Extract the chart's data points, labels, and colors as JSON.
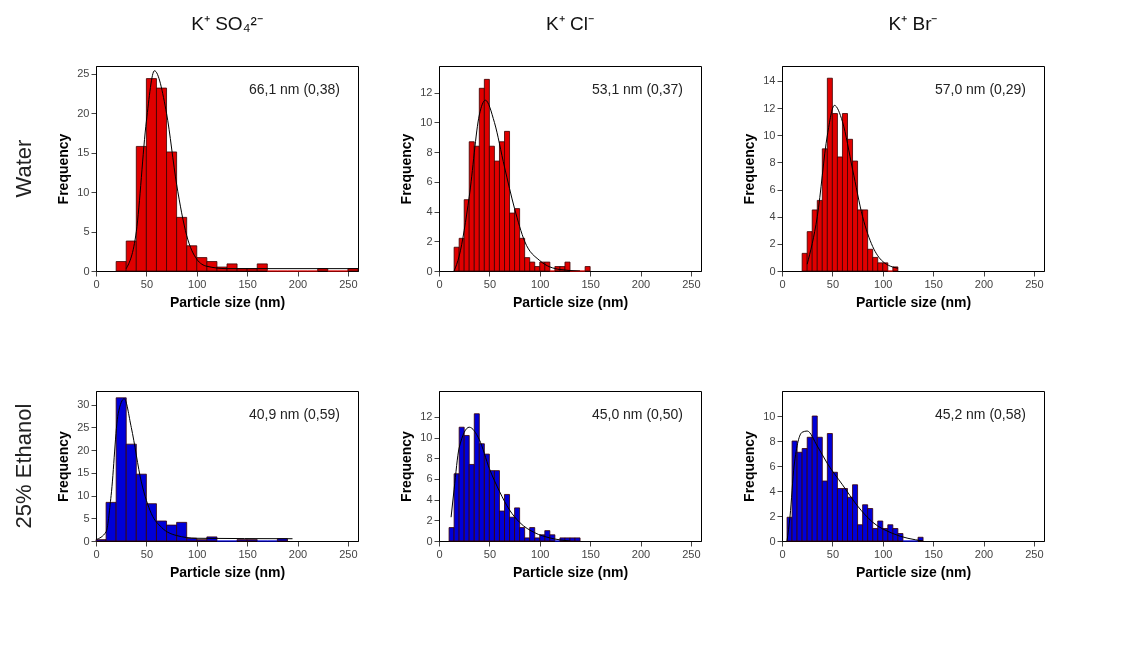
{
  "chart_data": [
    {
      "type": "histogram",
      "title": "K⁺ SO₄²⁻",
      "xlabel": "Particle size (nm)",
      "ylabel": "Frequency",
      "annotations": [
        "66,1 nm (0,38)",
        "Water"
      ],
      "color": "#e00000",
      "bins": [
        20,
        30,
        40,
        50,
        60,
        70,
        80,
        90,
        100,
        110,
        120,
        130,
        140,
        150,
        160,
        170,
        180,
        190,
        200,
        210,
        220,
        230,
        240,
        250,
        260
      ],
      "values": [
        1.2,
        3.8,
        15.8,
        24.4,
        23.2,
        15.1,
        6.8,
        3.2,
        1.7,
        1.2,
        0.5,
        0.9,
        0.3,
        0.3,
        0.9,
        0,
        0,
        0,
        0,
        0,
        0.3,
        0,
        0,
        0.3
      ],
      "xlim": [
        0,
        260
      ],
      "xticks": [
        0,
        50,
        100,
        150,
        200,
        250
      ],
      "ylim": [
        0,
        26
      ],
      "yticks": [
        0,
        5,
        10,
        15,
        20,
        25
      ],
      "series": [
        {
          "type": "line",
          "color": "#000000",
          "x": [
            30,
            40,
            50,
            58,
            70,
            80,
            90,
            100,
            110,
            130,
            260
          ],
          "values": [
            0.3,
            5,
            19,
            25.4,
            20,
            11,
            4.5,
            1.5,
            0.6,
            0.3,
            0.3
          ]
        }
      ]
    },
    {
      "type": "histogram",
      "title": "K⁺ Cl⁻",
      "xlabel": "Particle size (nm)",
      "ylabel": "Frequency",
      "annotations": [
        "53,1 nm (0,37)"
      ],
      "color": "#e00000",
      "bins": [
        15,
        20,
        25,
        30,
        35,
        40,
        45,
        50,
        55,
        60,
        65,
        70,
        75,
        80,
        85,
        90,
        95,
        100,
        105,
        110,
        115,
        120,
        125,
        130,
        135,
        140,
        145,
        150
      ],
      "values": [
        1.6,
        2.2,
        4.8,
        8.7,
        8.4,
        12.3,
        12.9,
        8.4,
        7.4,
        8.7,
        9.4,
        3.9,
        4.2,
        2.2,
        0.9,
        0.6,
        0.3,
        0.6,
        0.6,
        0,
        0.3,
        0.3,
        0.6,
        0,
        0,
        0,
        0.3
      ],
      "xlim": [
        0,
        260
      ],
      "xticks": [
        0,
        50,
        100,
        150,
        200,
        250
      ],
      "ylim": [
        0,
        13.8
      ],
      "yticks": [
        0,
        2,
        4,
        6,
        8,
        10,
        12
      ],
      "series": [
        {
          "type": "line",
          "color": "#000000",
          "x": [
            15,
            20,
            30,
            40,
            46,
            55,
            65,
            75,
            85,
            100,
            120,
            140
          ],
          "values": [
            0,
            1,
            5,
            10.5,
            11.5,
            10,
            7,
            4.2,
            2,
            0.7,
            0.1,
            0
          ]
        }
      ]
    },
    {
      "type": "histogram",
      "title": "K⁺ Br⁻",
      "xlabel": "Particle size (nm)",
      "ylabel": "Frequency",
      "annotations": [
        "57,0 nm (0,29)"
      ],
      "color": "#e00000",
      "bins": [
        20,
        25,
        30,
        35,
        40,
        45,
        50,
        55,
        60,
        65,
        70,
        75,
        80,
        85,
        90,
        95,
        100,
        105,
        110,
        115
      ],
      "values": [
        1.3,
        2.9,
        4.5,
        5.2,
        9.0,
        14.2,
        11.6,
        8.4,
        11.6,
        9.7,
        8.1,
        4.5,
        4.5,
        1.6,
        1.0,
        0.6,
        0.6,
        0,
        0.3
      ],
      "xlim": [
        0,
        260
      ],
      "xticks": [
        0,
        50,
        100,
        150,
        200,
        250
      ],
      "ylim": [
        0,
        15.1
      ],
      "yticks": [
        0,
        2,
        4,
        6,
        8,
        10,
        12,
        14
      ],
      "series": [
        {
          "type": "line",
          "color": "#000000",
          "x": [
            25,
            35,
            45,
            52,
            60,
            70,
            80,
            90,
            100,
            115
          ],
          "values": [
            0.5,
            4,
            10,
            12.2,
            11,
            7.5,
            4,
            1.8,
            0.7,
            0.2
          ]
        }
      ]
    },
    {
      "type": "histogram",
      "xlabel": "Particle size (nm)",
      "ylabel": "Frequency",
      "annotations": [
        "40,9 nm (0,59)",
        "25% Ethanol"
      ],
      "color": "#0000d8",
      "bins": [
        0,
        10,
        20,
        30,
        40,
        50,
        60,
        70,
        80,
        90,
        100,
        110,
        120,
        130,
        140,
        150,
        160,
        170,
        180,
        190
      ],
      "values": [
        0.3,
        8.5,
        31.5,
        21.3,
        14.7,
        8.2,
        4.4,
        3.5,
        4.1,
        0.6,
        0.3,
        0.9,
        0,
        0,
        0.3,
        0.3,
        0,
        0,
        0.5
      ],
      "xlim": [
        0,
        260
      ],
      "xticks": [
        0,
        50,
        100,
        150,
        200,
        250
      ],
      "ylim": [
        0,
        33
      ],
      "yticks": [
        0,
        5,
        10,
        15,
        20,
        25,
        30
      ],
      "series": [
        {
          "type": "line",
          "color": "#000000",
          "x": [
            0,
            10,
            15,
            22,
            28,
            35,
            45,
            55,
            65,
            80,
            100,
            195
          ],
          "values": [
            0.3,
            2,
            10,
            28,
            31.3,
            25,
            13,
            6,
            3,
            1.2,
            0.6,
            0.5
          ]
        }
      ]
    },
    {
      "type": "histogram",
      "xlabel": "Particle size (nm)",
      "ylabel": "Frequency",
      "annotations": [
        "45,0 nm (0,50)"
      ],
      "color": "#0000d8",
      "bins": [
        10,
        15,
        20,
        25,
        30,
        35,
        40,
        45,
        50,
        55,
        60,
        65,
        70,
        75,
        80,
        85,
        90,
        95,
        100,
        105,
        110,
        115,
        120,
        125,
        130,
        135,
        140
      ],
      "values": [
        1.3,
        6.5,
        11.0,
        10.2,
        7.4,
        12.3,
        9.4,
        8.4,
        6.8,
        6.8,
        2.9,
        4.5,
        2.3,
        3.2,
        1.3,
        0.3,
        1.3,
        0.3,
        0.6,
        1.0,
        0.6,
        0,
        0.3,
        0.3,
        0.3,
        0.3
      ],
      "xlim": [
        0,
        260
      ],
      "xticks": [
        0,
        50,
        100,
        150,
        200,
        250
      ],
      "ylim": [
        0,
        14.5
      ],
      "yticks": [
        0,
        2,
        4,
        6,
        8,
        10,
        12
      ],
      "series": [
        {
          "type": "line",
          "color": "#000000",
          "x": [
            12,
            15,
            20,
            30,
            40,
            50,
            60,
            70,
            80,
            95,
            110,
            130
          ],
          "values": [
            2.3,
            5,
            9,
            11,
            9.8,
            7,
            4.8,
            3,
            1.8,
            0.8,
            0.3,
            0
          ]
        }
      ]
    },
    {
      "type": "histogram",
      "xlabel": "Particle size (nm)",
      "ylabel": "Frequency",
      "annotations": [
        "45,2 nm (0,58)"
      ],
      "color": "#0000d8",
      "bins": [
        5,
        10,
        15,
        20,
        25,
        30,
        35,
        40,
        45,
        50,
        55,
        60,
        65,
        70,
        75,
        80,
        85,
        90,
        95,
        100,
        105,
        110,
        115,
        120,
        125,
        130,
        135,
        140
      ],
      "values": [
        1.9,
        8.0,
        7.1,
        7.4,
        8.3,
        10.0,
        8.3,
        4.8,
        8.6,
        5.5,
        4.2,
        4.2,
        3.5,
        4.5,
        1.3,
        2.9,
        2.6,
        1.0,
        1.6,
        1.0,
        1.3,
        1.0,
        0.6,
        0,
        0,
        0,
        0.3
      ],
      "xlim": [
        0,
        260
      ],
      "xticks": [
        0,
        50,
        100,
        150,
        200,
        250
      ],
      "ylim": [
        0,
        12
      ],
      "yticks": [
        0,
        2,
        4,
        6,
        8,
        10
      ],
      "series": [
        {
          "type": "line",
          "color": "#000000",
          "x": [
            5,
            8,
            12,
            20,
            25,
            35,
            45,
            60,
            75,
            90,
            110,
            140
          ],
          "values": [
            0,
            2,
            6,
            8.7,
            8.8,
            7.6,
            6.2,
            4.5,
            2.8,
            1.5,
            0.6,
            0
          ]
        }
      ]
    }
  ]
}
